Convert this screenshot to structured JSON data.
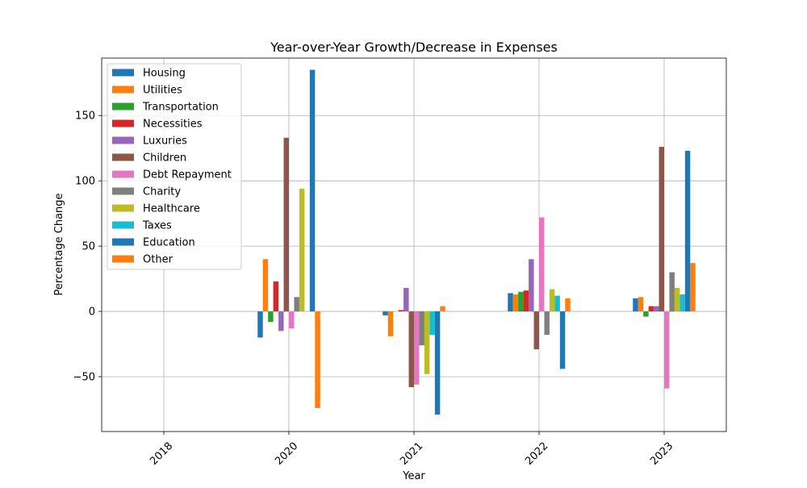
{
  "chart_data": {
    "type": "bar",
    "title": "Year-over-Year Growth/Decrease in Expenses",
    "xlabel": "Year",
    "ylabel": "Percentage Change",
    "categories": [
      "2018",
      "2020",
      "2021",
      "2022",
      "2023"
    ],
    "ylim": [
      -92,
      194
    ],
    "yticks": [
      -50,
      0,
      50,
      100,
      150
    ],
    "grid": true,
    "legend_position": "top-left",
    "series": [
      {
        "name": "Housing",
        "color": "#1f77b4",
        "values": [
          null,
          -20,
          -3,
          14,
          10
        ]
      },
      {
        "name": "Utilities",
        "color": "#ff7f0e",
        "values": [
          null,
          40,
          -19,
          13,
          11
        ]
      },
      {
        "name": "Transportation",
        "color": "#2ca02c",
        "values": [
          null,
          -8,
          0,
          15,
          -4
        ]
      },
      {
        "name": "Necessities",
        "color": "#d62728",
        "values": [
          null,
          23,
          1,
          16,
          4
        ]
      },
      {
        "name": "Luxuries",
        "color": "#9467bd",
        "values": [
          null,
          -15,
          18,
          40,
          4
        ]
      },
      {
        "name": "Children",
        "color": "#8c564b",
        "values": [
          null,
          133,
          -58,
          -29,
          126
        ]
      },
      {
        "name": "Debt Repayment",
        "color": "#e377c2",
        "values": [
          null,
          -13,
          -56,
          72,
          -59
        ]
      },
      {
        "name": "Charity",
        "color": "#7f7f7f",
        "values": [
          null,
          11,
          -26,
          -18,
          30
        ]
      },
      {
        "name": "Healthcare",
        "color": "#bcbd22",
        "values": [
          null,
          94,
          -48,
          17,
          18
        ]
      },
      {
        "name": "Taxes",
        "color": "#17becf",
        "values": [
          null,
          0,
          -18,
          12,
          13
        ]
      },
      {
        "name": "Education",
        "color": "#1f77b4",
        "values": [
          null,
          185,
          -79,
          -44,
          123
        ]
      },
      {
        "name": "Other",
        "color": "#ff7f0e",
        "values": [
          null,
          -74,
          4,
          10,
          37
        ]
      }
    ]
  }
}
